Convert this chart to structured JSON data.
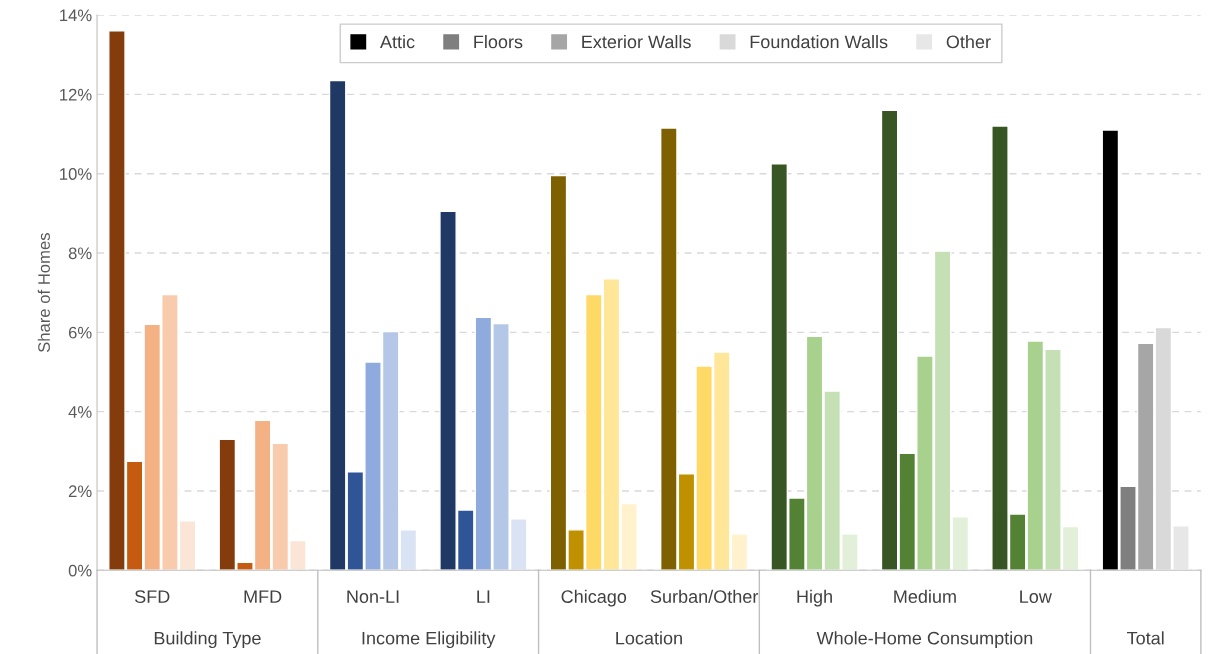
{
  "chart_data": {
    "type": "bar",
    "ylabel": "Share of Homes",
    "categories": [
      "SFD",
      "MFD",
      "Non-LI",
      "LI",
      "Chicago",
      "Surban/Other",
      "High",
      "Medium",
      "Low",
      null
    ],
    "series": [
      {
        "name": "Attic",
        "color": "#000000",
        "colors": [
          "#843c0c",
          "#843c0c",
          "#203864",
          "#203864",
          "#7f6000",
          "#7f6000",
          "#375623",
          "#375623",
          "#375623",
          "#000000"
        ],
        "values": [
          13.6,
          3.3,
          12.35,
          9.05,
          9.95,
          11.15,
          10.25,
          11.6,
          11.2,
          11.1
        ]
      },
      {
        "name": "Floors",
        "color": "#7f7f7f",
        "colors": [
          "#c55a11",
          "#c55a11",
          "#2f5597",
          "#2f5597",
          "#bf9000",
          "#bf9000",
          "#548235",
          "#548235",
          "#548235",
          "#7f7f7f"
        ],
        "values": [
          2.75,
          0.2,
          2.48,
          1.52,
          1.02,
          2.43,
          1.82,
          2.95,
          1.42,
          2.12
        ]
      },
      {
        "name": "Exterior Walls",
        "color": "#a6a6a6",
        "colors": [
          "#f4b183",
          "#f4b183",
          "#8faadc",
          "#8faadc",
          "#ffd966",
          "#ffd966",
          "#a9d18e",
          "#a9d18e",
          "#a9d18e",
          "#a6a6a6"
        ],
        "values": [
          6.2,
          3.78,
          5.25,
          6.38,
          6.95,
          5.15,
          5.9,
          5.4,
          5.78,
          5.72
        ]
      },
      {
        "name": "Foundation Walls",
        "color": "#d9d9d9",
        "colors": [
          "#f8cbad",
          "#f8cbad",
          "#b4c7e7",
          "#b4c7e7",
          "#ffe699",
          "#ffe699",
          "#c5e0b4",
          "#c5e0b4",
          "#c5e0b4",
          "#d9d9d9"
        ],
        "values": [
          6.95,
          3.2,
          6.02,
          6.22,
          7.35,
          5.5,
          4.52,
          8.05,
          5.57,
          6.12
        ]
      },
      {
        "name": "Other",
        "color": "#e7e7e7",
        "colors": [
          "#fbe5d6",
          "#fbe5d6",
          "#dae3f3",
          "#dae3f3",
          "#fff2cc",
          "#fff2cc",
          "#e2f0d9",
          "#e2f0d9",
          "#e2f0d9",
          "#e7e7e7"
        ],
        "values": [
          1.25,
          0.75,
          1.02,
          1.3,
          1.68,
          0.92,
          0.92,
          1.35,
          1.1,
          1.12
        ]
      }
    ],
    "ylim": [
      0,
      14
    ],
    "yticks": [
      {
        "value": 0,
        "label": "0%"
      },
      {
        "value": 2,
        "label": "2%"
      },
      {
        "value": 4,
        "label": "4%"
      },
      {
        "value": 6,
        "label": "6%"
      },
      {
        "value": 8,
        "label": "8%"
      },
      {
        "value": 10,
        "label": "10%"
      },
      {
        "value": 12,
        "label": "12%"
      },
      {
        "value": 14,
        "label": "14%"
      }
    ],
    "grid": "y",
    "legend": "top",
    "annotations": [
      "Building Type",
      "Income Eligibility",
      "Location",
      "Whole-Home Consumption",
      "Total"
    ]
  }
}
